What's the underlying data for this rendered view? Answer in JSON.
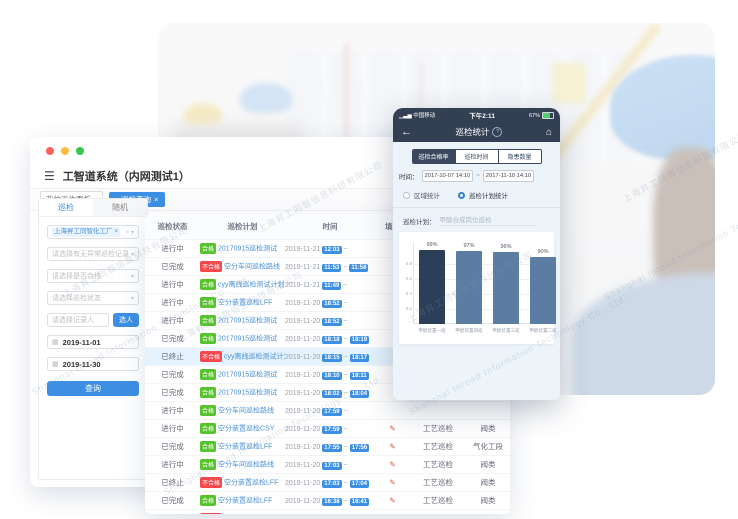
{
  "watermark": {
    "cn": "上海昇工同智信息科技有限公司",
    "en": "Shanghai Inroad Information Technology Co., Ltd."
  },
  "desktop": {
    "title": "工智道系统（内网测试1）",
    "menu_icon": "hamburger",
    "window_tabs": [
      {
        "label": "我的工作面板",
        "close": "×"
      },
      {
        "label": "巡检查询",
        "close": "×",
        "active": true
      }
    ],
    "sidebar": {
      "tabs": [
        {
          "label": "巡检",
          "active": true
        },
        {
          "label": "随机"
        }
      ],
      "org_tag": "上海昇工同智化工厂",
      "org_close": "×",
      "selects": [
        "请选择有无异常巡检记录",
        "请选择是否合格",
        "请选择巡检状态"
      ],
      "recorder_placeholder": "请选择记录人",
      "pick_person_button": "选人",
      "date_start": "2019-11-01",
      "date_end": "2019-11-30",
      "search_button": "查询"
    },
    "table": {
      "headers": [
        "巡检状态",
        "巡检计划",
        "时间",
        "填写"
      ],
      "rows": [
        {
          "status": "进行中",
          "badge": "合格",
          "plan": "20170915巡检测试",
          "date": "2019-11-21",
          "start": "12:03",
          "end": ""
        },
        {
          "status": "已完成",
          "badge": "不合格",
          "plan": "空分车间巡检路线",
          "date": "2019-11-21",
          "start": "11:53",
          "end": "11:58"
        },
        {
          "status": "进行中",
          "badge": "合格",
          "plan": "cyy离线巡检测试计划",
          "date": "2019-11-21",
          "start": "11:49",
          "end": ""
        },
        {
          "status": "进行中",
          "badge": "合格",
          "plan": "空分装置巡检LFF",
          "date": "2019-11-20",
          "start": "18:52",
          "end": ""
        },
        {
          "status": "进行中",
          "badge": "合格",
          "plan": "20170915巡检测试",
          "date": "2019-11-20",
          "start": "18:52",
          "end": ""
        },
        {
          "status": "已完成",
          "badge": "合格",
          "plan": "20170915巡检测试",
          "date": "2019-11-20",
          "start": "18:18",
          "end": "18:19"
        },
        {
          "status": "已终止",
          "badge": "不合格",
          "plan": "cyy离线巡检测试计划",
          "date": "2019-11-20",
          "start": "18:15",
          "end": "18:17",
          "highlight": true
        },
        {
          "status": "已完成",
          "badge": "合格",
          "plan": "20170915巡检测试",
          "date": "2019-11-20",
          "start": "18:10",
          "end": "18:11"
        },
        {
          "status": "已完成",
          "badge": "合格",
          "plan": "20170915巡检测试",
          "date": "2019-11-20",
          "start": "18:02",
          "end": "18:04"
        },
        {
          "status": "进行中",
          "badge": "合格",
          "plan": "空分车间巡检路线",
          "date": "2019-11-20",
          "start": "17:59",
          "end": ""
        },
        {
          "status": "进行中",
          "badge": "合格",
          "plan": "空分装置巡检CSY",
          "date": "2019-11-20",
          "start": "17:59",
          "end": "",
          "type": "工艺巡检",
          "area": "阀类",
          "pencil": true
        },
        {
          "status": "已完成",
          "badge": "合格",
          "plan": "空分装置巡检LFF",
          "date": "2019-11-20",
          "start": "17:55",
          "end": "17:56",
          "type": "工艺巡检",
          "area": "气化工段",
          "pencil": true
        },
        {
          "status": "进行中",
          "badge": "合格",
          "plan": "空分车间巡检路线",
          "date": "2019-11-20",
          "start": "17:03",
          "end": "",
          "type": "工艺巡检",
          "area": "阀类",
          "pencil": true
        },
        {
          "status": "已终止",
          "badge": "不合格",
          "plan": "空分装置巡检LFF",
          "date": "2019-11-20",
          "start": "17:03",
          "end": "17:04",
          "type": "工艺巡检",
          "area": "阀类",
          "pencil": true
        },
        {
          "status": "已完成",
          "badge": "合格",
          "plan": "空分装置巡检LFF",
          "date": "2019-11-20",
          "start": "16:38",
          "end": "16:41",
          "type": "工艺巡检",
          "area": "阀类",
          "pencil": true
        },
        {
          "status": "已终止",
          "badge": "不合格",
          "plan": "空分装置巡检LFF",
          "date": "2019-11-20",
          "start": "14:48",
          "end": "14:55",
          "type": "工艺巡检",
          "area": "阀类",
          "pencil": true,
          "extra_tag": true
        }
      ]
    }
  },
  "phone": {
    "status_bar": {
      "carrier": "中国移动",
      "time": "下午2:11",
      "battery": "67%"
    },
    "nav": {
      "title": "巡检统计",
      "help": "?",
      "back": "←",
      "home": "⌂"
    },
    "segments": [
      {
        "label": "巡检合格率",
        "active": true
      },
      {
        "label": "巡检时间"
      },
      {
        "label": "隐患数量"
      }
    ],
    "time_label": "时间：",
    "time_start": "2017-10-07 14:10",
    "time_separator": "~",
    "time_end": "2017-11-10 14:10",
    "radios": [
      {
        "label": "区域统计",
        "selected": false
      },
      {
        "label": "巡检计划统计",
        "selected": true
      }
    ],
    "plan_label": "巡检计划：",
    "plan_value": "甲醇合成岗位巡检"
  },
  "chart_data": {
    "type": "bar",
    "title": "巡检合格率",
    "categories": [
      "甲醇装置一班",
      "甲醇装置四班",
      "甲醇装置三班",
      "甲醇装置二班"
    ],
    "values": [
      99,
      97,
      96,
      90
    ],
    "bar_labels": [
      "99%",
      "97%",
      "96%",
      "90%"
    ],
    "y_ticks": [
      "0.2",
      "0.4",
      "0.6",
      "0.8"
    ],
    "ylim": [
      0,
      100
    ],
    "grid": true,
    "legend": "none",
    "colors": {
      "selected_bar": "#2c3f58",
      "default_bar": "#5b7da3"
    }
  },
  "colors": {
    "accent_blue": "#3d8fe3",
    "badge_green": "#57c22d",
    "badge_red": "#f5484d",
    "phone_dark": "#333f52",
    "highlight_row": "#e4f3fd"
  }
}
